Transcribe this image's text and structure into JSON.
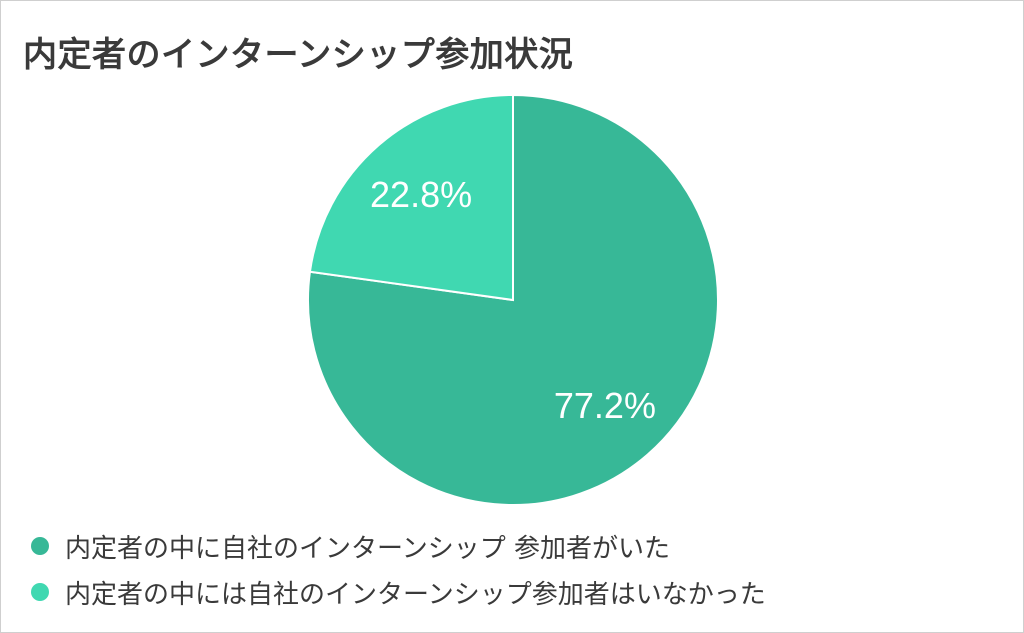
{
  "chart_data": {
    "type": "pie",
    "title": "内定者のインターンシップ参加状況",
    "slices": [
      {
        "label": "内定者の中に自社のインターンシップ 参加者がいた",
        "value": 77.2,
        "display": "77.2%",
        "color": "#37b897"
      },
      {
        "label": "内定者の中には自社のインターンシップ参加者はいなかった",
        "value": 22.8,
        "display": "22.8%",
        "color": "#40d8b1"
      }
    ],
    "legend_position": "bottom"
  }
}
